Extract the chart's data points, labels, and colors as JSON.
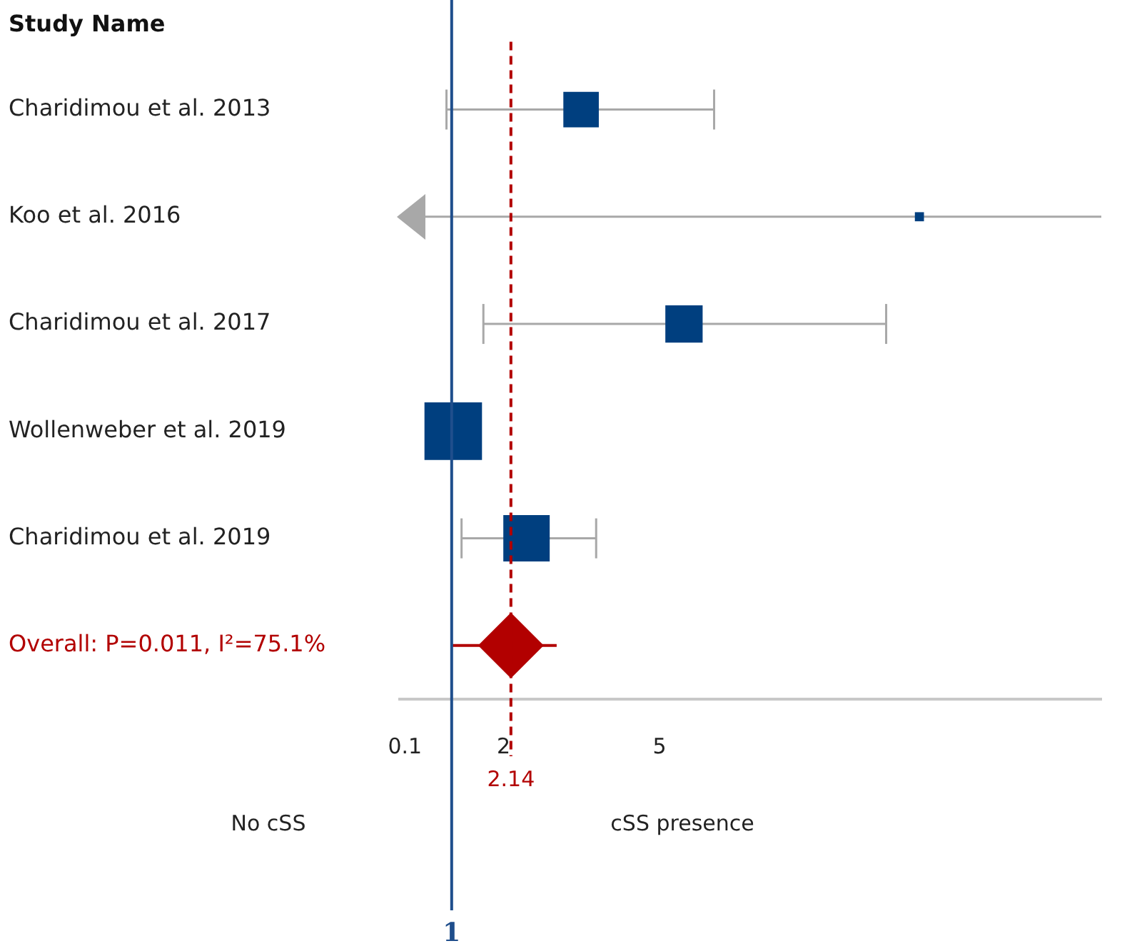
{
  "chart_data": {
    "type": "scatter",
    "title": "Study Name",
    "orientation": "horizontal",
    "categories": [
      "Charidimou et al. 2013",
      "Koo et al. 2016",
      "Charidimou et al. 2017",
      "Wollenweber et al. 2019",
      "Charidimou et al. 2019",
      "Overall: P=0.011, I²=75.1%"
    ],
    "series": [
      {
        "type": "scatter",
        "marker": "square",
        "color": "#003f7f",
        "values": [
          3.49,
          10.0,
          5.47,
          1.03,
          2.44,
          null
        ],
        "sizes": [
          0.38,
          0.025,
          0.42,
          1,
          0.65,
          null
        ],
        "errors": [
          [
            0.9,
            6.05
          ],
          [
            0,
            13.5
          ],
          [
            1.61,
            9.36
          ],
          null,
          [
            1.19,
            3.78
          ],
          null
        ]
      },
      {
        "type": "scatter",
        "marker": "diamond",
        "color": "#b20000",
        "values": [
          null,
          null,
          null,
          null,
          null,
          2.14
        ],
        "errors": [
          null,
          null,
          null,
          null,
          null,
          [
            1.0,
            3.02
          ]
        ]
      }
    ],
    "xlim": [
      0,
      13.5
    ],
    "xticks": [
      0.1,
      2,
      5
    ],
    "grid": false,
    "legend": false,
    "ref_lines": [
      {
        "axis": "x",
        "value": 1,
        "label": "1",
        "color": "#1f4e8c",
        "line_style": "solid"
      },
      {
        "axis": "x",
        "value": 2.14,
        "label": "2.14",
        "color": "#b20000",
        "line_style": "dashed"
      }
    ],
    "annotations": [
      "No cSS",
      "cSS presence"
    ]
  }
}
